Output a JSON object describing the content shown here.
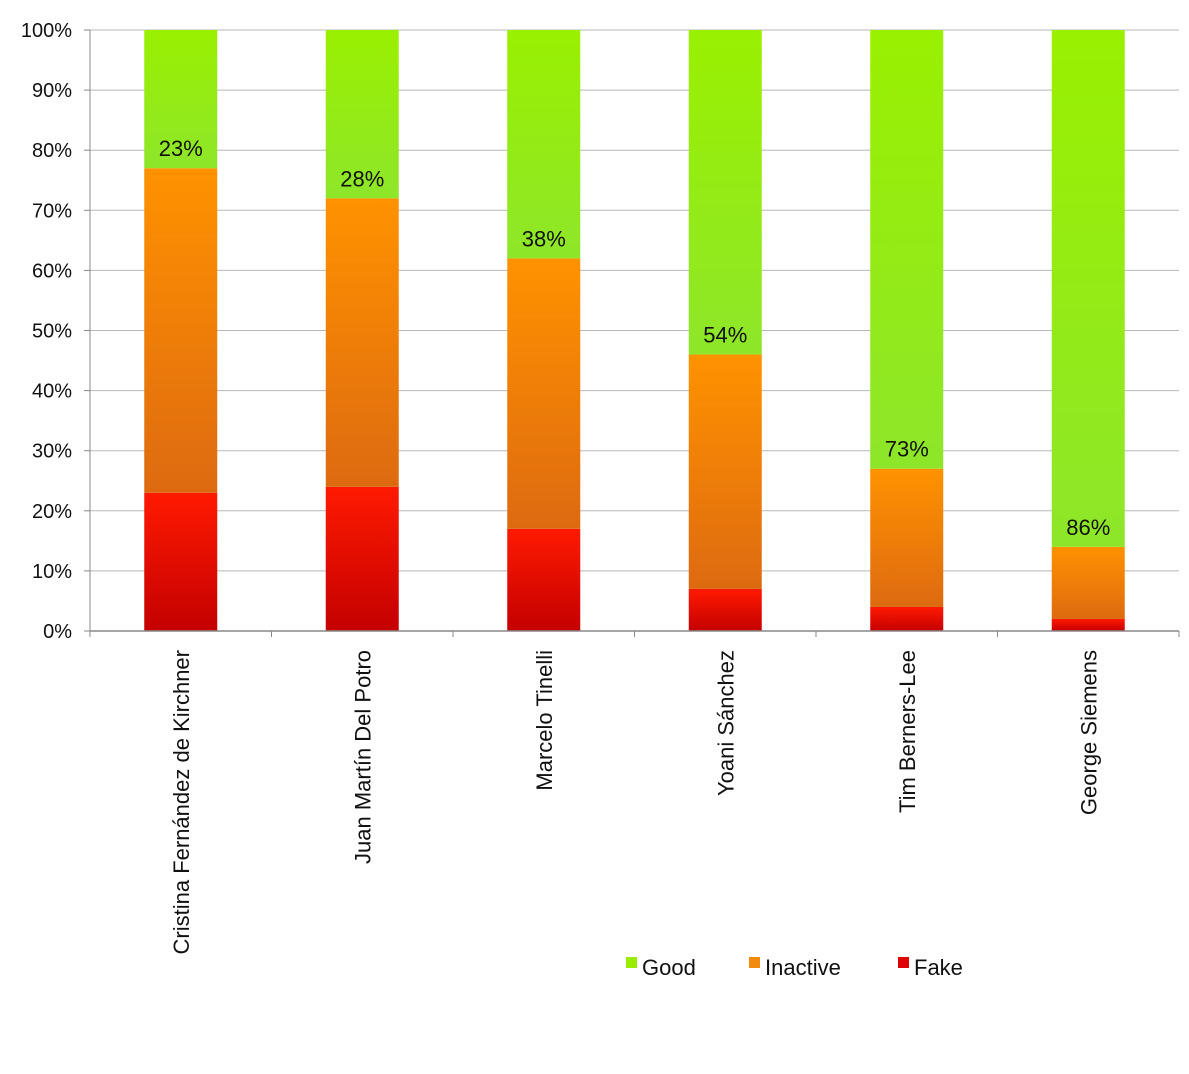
{
  "chart_data": {
    "type": "bar",
    "stacked": true,
    "categories": [
      "Cristina Fernández de Kirchner",
      "Juan Martín Del Potro",
      "Marcelo Tinelli",
      "Yoani Sánchez",
      "Tim Berners-Lee",
      "George Siemens"
    ],
    "series": [
      {
        "name": "Fake",
        "values": [
          23,
          24,
          17,
          7,
          4,
          2
        ],
        "color": "#e00000"
      },
      {
        "name": "Inactive",
        "values": [
          54,
          48,
          45,
          39,
          23,
          12
        ],
        "color": "#f28a10"
      },
      {
        "name": "Good",
        "values": [
          23,
          28,
          38,
          54,
          73,
          86
        ],
        "color": "#99ee00"
      }
    ],
    "data_labels": [
      "23%",
      "28%",
      "38%",
      "54%",
      "73%",
      "86%"
    ],
    "yticks": [
      "0%",
      "10%",
      "20%",
      "30%",
      "40%",
      "50%",
      "60%",
      "70%",
      "80%",
      "90%",
      "100%"
    ],
    "ylim": [
      0,
      100
    ],
    "grid": true,
    "legend": {
      "position": "bottom-right",
      "entries": [
        "Good",
        "Inactive",
        "Fake"
      ]
    }
  }
}
